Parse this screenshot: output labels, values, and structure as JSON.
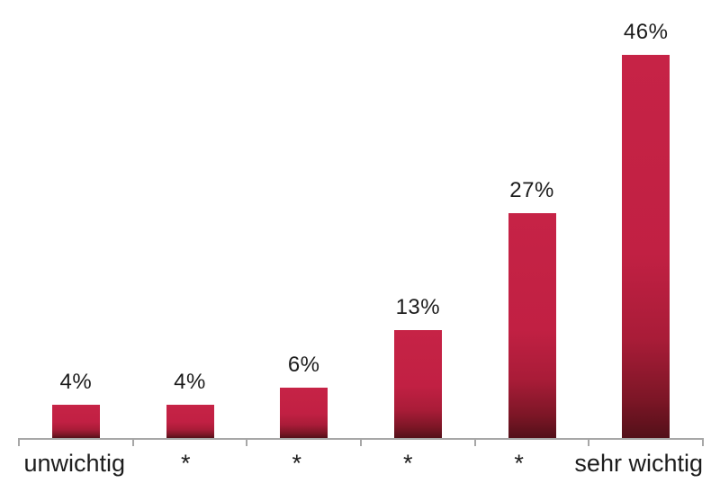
{
  "chart_data": {
    "type": "bar",
    "title": "",
    "xlabel": "",
    "ylabel": "",
    "categories": [
      "unwichtig",
      "*",
      "*",
      "*",
      "*",
      "sehr wichtig"
    ],
    "values": [
      4,
      4,
      6,
      13,
      27,
      46
    ],
    "value_labels": [
      "4%",
      "4%",
      "6%",
      "13%",
      "27%",
      "46%"
    ],
    "unit": "%",
    "ylim": [
      0,
      50
    ],
    "grid": false,
    "legend": false,
    "y_axis_visible": false,
    "x_axis_visible": true,
    "colors": {
      "bar_gradient_top": "#c62346",
      "bar_gradient_bottom": "#531019",
      "axis": "#a7a7a7",
      "text": "#1c1c1c",
      "background": "#ffffff"
    }
  }
}
